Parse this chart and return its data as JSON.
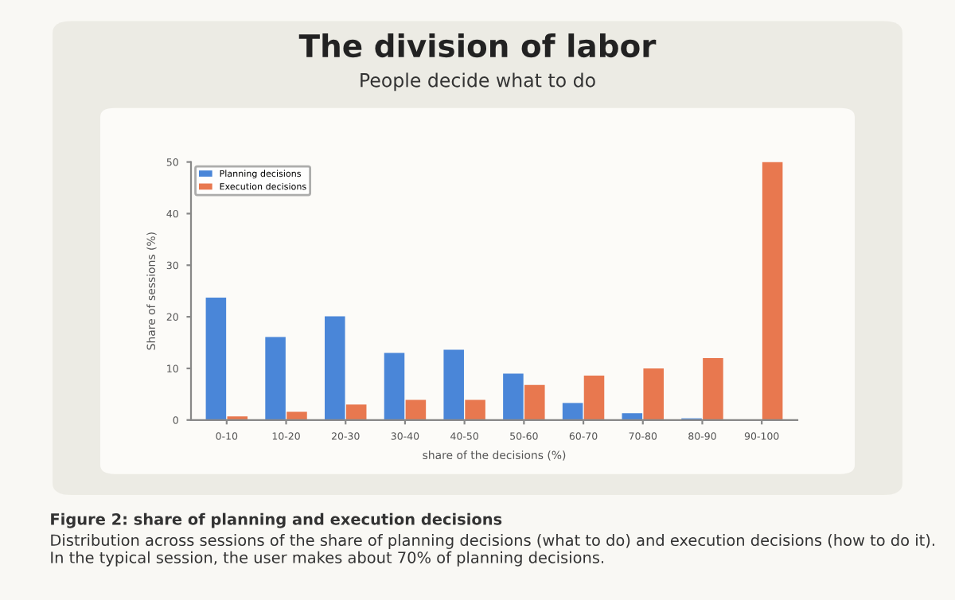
{
  "chart_data": {
    "type": "bar",
    "title": "The division of labor",
    "subtitle": "People decide what to do",
    "categories": [
      "0-10",
      "10-20",
      "20-30",
      "30-40",
      "40-50",
      "50-60",
      "60-70",
      "70-80",
      "80-90",
      "90-100"
    ],
    "series": [
      {
        "name": "Planning decisions",
        "color": "#4a86d8",
        "values": [
          23.7,
          16.1,
          20.1,
          13.0,
          13.6,
          9.0,
          3.3,
          1.3,
          0.3,
          0
        ]
      },
      {
        "name": "Execution decisions",
        "color": "#e8784f",
        "values": [
          0.7,
          1.6,
          3.0,
          3.9,
          3.9,
          6.8,
          8.6,
          10.0,
          12.0,
          50
        ]
      }
    ],
    "xlabel": "share of the decisions (%)",
    "ylabel": "Share of sessions (%)",
    "ylim": [
      0,
      50
    ],
    "yticks": [
      0,
      10,
      20,
      30,
      40,
      50
    ],
    "grid": false,
    "legend": "top left",
    "annotations": [
      "Figure 2: share of planning and execution decisions",
      "Distribution across sessions of the share of planning decisions (what to do) and execution decisions (how to do it). In the typical session, the user makes about 70% of planning decisions."
    ]
  }
}
